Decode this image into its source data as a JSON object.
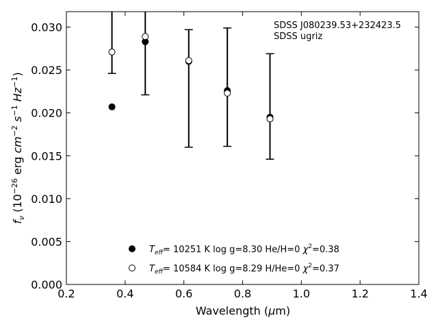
{
  "chart_data": {
    "type": "scatter",
    "xlabel": "Wavelength (μm)",
    "ylabel": "f_ν (10^-26 erg cm^-2 s^-1 Hz^-1)",
    "xlim": [
      0.2,
      1.4
    ],
    "ylim": [
      0.0,
      0.0318
    ],
    "xticks": [
      "0.2",
      "0.4",
      "0.6",
      "0.8",
      "1.0",
      "1.2",
      "1.4"
    ],
    "yticks": [
      "0.000",
      "0.005",
      "0.010",
      "0.015",
      "0.020",
      "0.025",
      "0.030"
    ],
    "annotations": [
      "SDSS J080239.53+232423.5",
      "SDSS ugriz"
    ],
    "legend_placement": "lower-center",
    "grid": false,
    "observed": {
      "x": [
        0.3551,
        0.4686,
        0.6166,
        0.748,
        0.8932
      ],
      "y": [
        0.0271,
        0.0289,
        0.0261,
        0.0223,
        0.0193
      ],
      "yerr_low": [
        0.0246,
        0.0221,
        0.016,
        0.0161,
        0.0146
      ],
      "yerr_high": [
        0.04,
        0.04,
        0.0297,
        0.0299,
        0.0269
      ]
    },
    "series": [
      {
        "name": "T_eff= 10251 K  log g=8.30  He/H=0  χ²=0.38",
        "marker": "filled-circle",
        "x": [
          0.3551,
          0.4686,
          0.6166,
          0.748,
          0.8932
        ],
        "y": [
          0.0207,
          0.0283,
          0.026,
          0.0226,
          0.0195
        ]
      },
      {
        "name": "T_eff= 10584 K  log g=8.29  H/He=0  χ²=0.37",
        "marker": "open-circle",
        "x": [
          0.3551,
          0.4686,
          0.6166,
          0.748,
          0.8932
        ],
        "y": [
          0.0271,
          0.0289,
          0.0261,
          0.0223,
          0.0193
        ]
      }
    ]
  }
}
